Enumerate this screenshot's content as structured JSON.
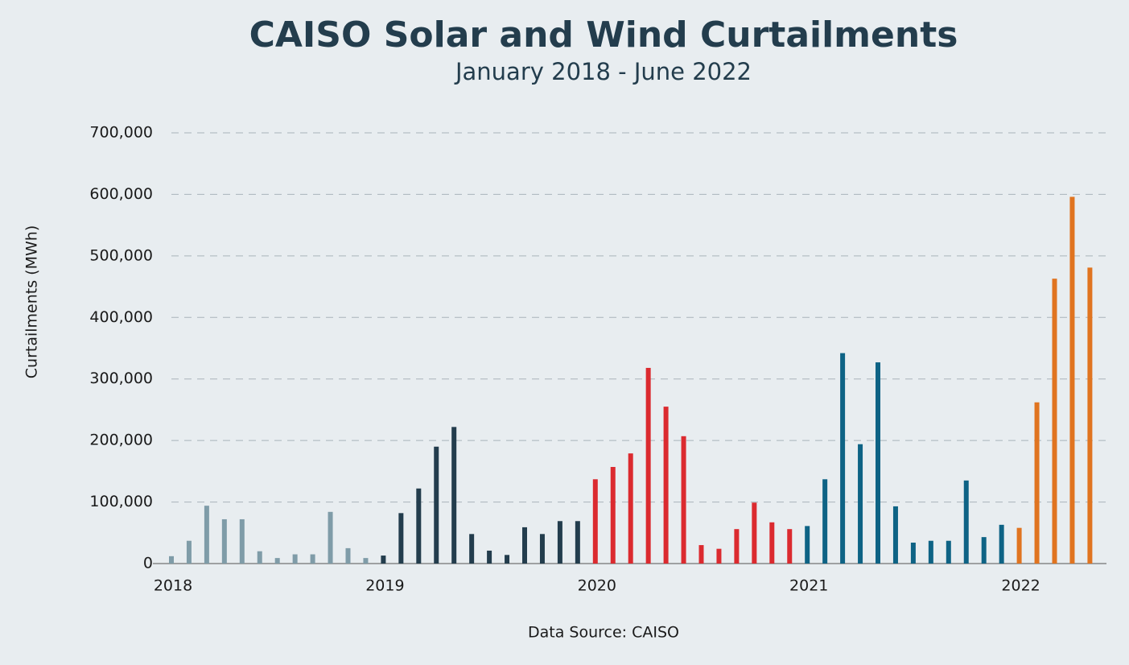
{
  "chart_data": {
    "type": "bar",
    "title": "CAISO Solar and Wind Curtailments",
    "subtitle": "January 2018 - June 2022",
    "y_label": "Curtailments (MWh)",
    "source": "Data Source: CAISO",
    "categories": [
      "2018",
      null,
      null,
      null,
      null,
      null,
      null,
      null,
      null,
      null,
      null,
      null,
      "2019",
      null,
      null,
      null,
      null,
      null,
      null,
      null,
      null,
      null,
      null,
      null,
      "2020",
      null,
      null,
      null,
      null,
      null,
      null,
      null,
      null,
      null,
      null,
      null,
      "2021",
      null,
      null,
      null,
      null,
      null,
      null,
      null,
      null,
      null,
      null,
      null,
      "2022",
      null,
      null,
      null,
      null
    ],
    "series": [
      {
        "color": "#7f9ca8",
        "values": [
          12000,
          37000,
          94000,
          72000,
          72000,
          20000,
          9000,
          15000,
          15000,
          84000,
          25000,
          9000,
          null,
          null,
          null,
          null,
          null,
          null,
          null,
          null,
          null,
          null,
          null,
          null,
          null,
          null,
          null,
          null,
          null,
          null,
          null,
          null,
          null,
          null,
          null,
          null,
          null,
          null,
          null,
          null,
          null,
          null,
          null,
          null,
          null,
          null,
          null,
          null,
          null,
          null,
          null,
          null,
          null
        ]
      },
      {
        "color": "#233d4d",
        "values": [
          null,
          null,
          null,
          null,
          null,
          null,
          null,
          null,
          null,
          null,
          null,
          null,
          13000,
          82000,
          122000,
          190000,
          222000,
          48000,
          21000,
          14000,
          59000,
          48000,
          69000,
          69000,
          null,
          null,
          null,
          null,
          null,
          null,
          null,
          null,
          null,
          null,
          null,
          null,
          null,
          null,
          null,
          null,
          null,
          null,
          null,
          null,
          null,
          null,
          null,
          null,
          null,
          null,
          null,
          null,
          null
        ]
      },
      {
        "color": "#db2a2f",
        "values": [
          null,
          null,
          null,
          null,
          null,
          null,
          null,
          null,
          null,
          null,
          null,
          null,
          null,
          null,
          null,
          null,
          null,
          null,
          null,
          null,
          null,
          null,
          null,
          null,
          137000,
          157000,
          179000,
          318000,
          255000,
          207000,
          30000,
          24000,
          56000,
          99000,
          67000,
          56000,
          null,
          null,
          null,
          null,
          null,
          null,
          null,
          null,
          null,
          null,
          null,
          null,
          null,
          null,
          null,
          null,
          null
        ]
      },
      {
        "color": "#0e6385",
        "values": [
          null,
          null,
          null,
          null,
          null,
          null,
          null,
          null,
          null,
          null,
          null,
          null,
          null,
          null,
          null,
          null,
          null,
          null,
          null,
          null,
          null,
          null,
          null,
          null,
          null,
          null,
          null,
          null,
          null,
          null,
          null,
          null,
          null,
          null,
          null,
          null,
          61000,
          137000,
          342000,
          194000,
          327000,
          93000,
          34000,
          37000,
          37000,
          135000,
          43000,
          63000,
          null,
          null,
          null,
          null,
          null
        ]
      },
      {
        "color": "#e07420",
        "values": [
          null,
          null,
          null,
          null,
          null,
          null,
          null,
          null,
          null,
          null,
          null,
          null,
          null,
          null,
          null,
          null,
          null,
          null,
          null,
          null,
          null,
          null,
          null,
          null,
          null,
          null,
          null,
          null,
          null,
          null,
          null,
          null,
          null,
          null,
          null,
          null,
          null,
          null,
          null,
          null,
          null,
          null,
          null,
          null,
          null,
          null,
          null,
          null,
          58000,
          262000,
          463000,
          596000,
          481000
        ]
      }
    ],
    "ylim": [
      0,
      700000
    ],
    "yticks": [
      0,
      {
        "value": 100000,
        "label": "100,000"
      },
      {
        "value": 200000,
        "label": "200,000"
      },
      {
        "value": 300000,
        "label": "300,000"
      },
      {
        "value": 400000,
        "label": "400,000"
      },
      {
        "value": 500000,
        "label": "500,000"
      },
      {
        "value": 600000,
        "label": "600,000"
      },
      {
        "value": 700000,
        "label": "700,000"
      }
    ],
    "grid": true
  }
}
